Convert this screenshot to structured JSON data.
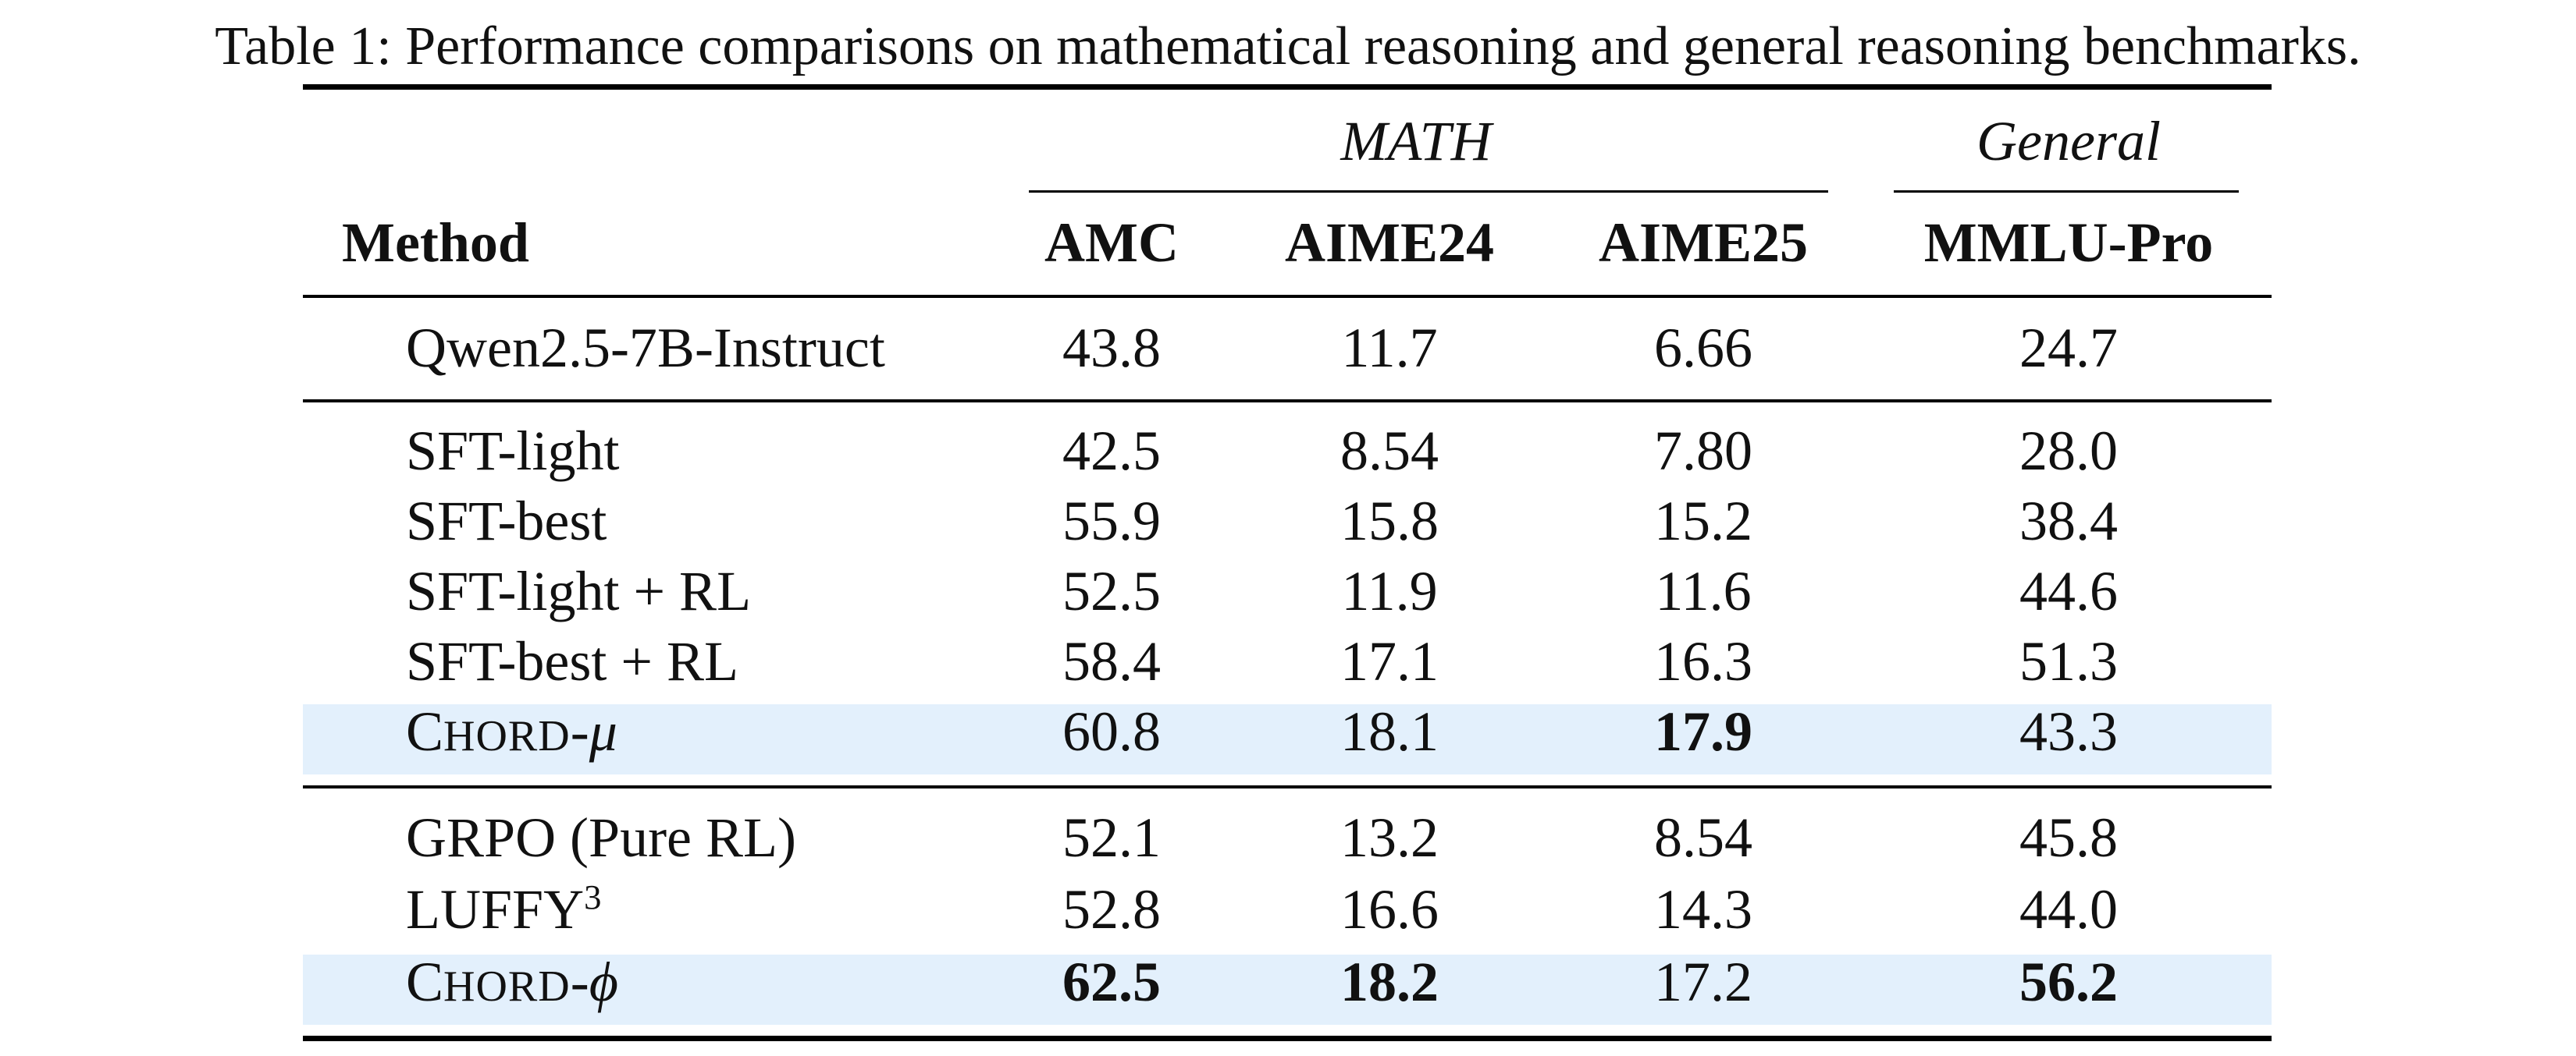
{
  "caption": {
    "label": "Table 1:",
    "text": "Performance comparisons on mathematical reasoning and general reasoning benchmarks."
  },
  "header": {
    "group_math": "MATH",
    "group_general": "General",
    "method": "Method",
    "columns": [
      "AMC",
      "AIME24",
      "AIME25",
      "MMLU-Pro"
    ]
  },
  "rows": [
    {
      "method": "Qwen2.5-7B-Instruct",
      "values": [
        "43.8",
        "11.7",
        "6.66",
        "24.7"
      ]
    },
    {
      "method": "SFT-light",
      "values": [
        "42.5",
        "8.54",
        "7.80",
        "28.0"
      ]
    },
    {
      "method": "SFT-best",
      "values": [
        "55.9",
        "15.8",
        "15.2",
        "38.4"
      ]
    },
    {
      "method": "SFT-light + RL",
      "values": [
        "52.5",
        "11.9",
        "11.6",
        "44.6"
      ]
    },
    {
      "method": "SFT-best + RL",
      "values": [
        "58.4",
        "17.1",
        "16.3",
        "51.3"
      ]
    },
    {
      "method_prefix": "C",
      "method_smallcaps": "HORD",
      "method_suffix": "-μ",
      "values": [
        "60.8",
        "18.1",
        "17.9",
        "43.3"
      ],
      "bold_values": [
        false,
        false,
        true,
        false
      ],
      "highlight": true
    },
    {
      "method": "GRPO (Pure RL)",
      "values": [
        "52.1",
        "13.2",
        "8.54",
        "45.8"
      ]
    },
    {
      "method": "LUFFY",
      "method_sup": "3",
      "values": [
        "52.8",
        "16.6",
        "14.3",
        "44.0"
      ]
    },
    {
      "method_prefix": "C",
      "method_smallcaps": "HORD",
      "method_suffix": "-ϕ",
      "values": [
        "62.5",
        "18.2",
        "17.2",
        "56.2"
      ],
      "bold_values": [
        true,
        true,
        false,
        true
      ],
      "highlight": true
    }
  ],
  "colors": {
    "highlight_row": "#e3f0fc",
    "rule": "#000000"
  }
}
